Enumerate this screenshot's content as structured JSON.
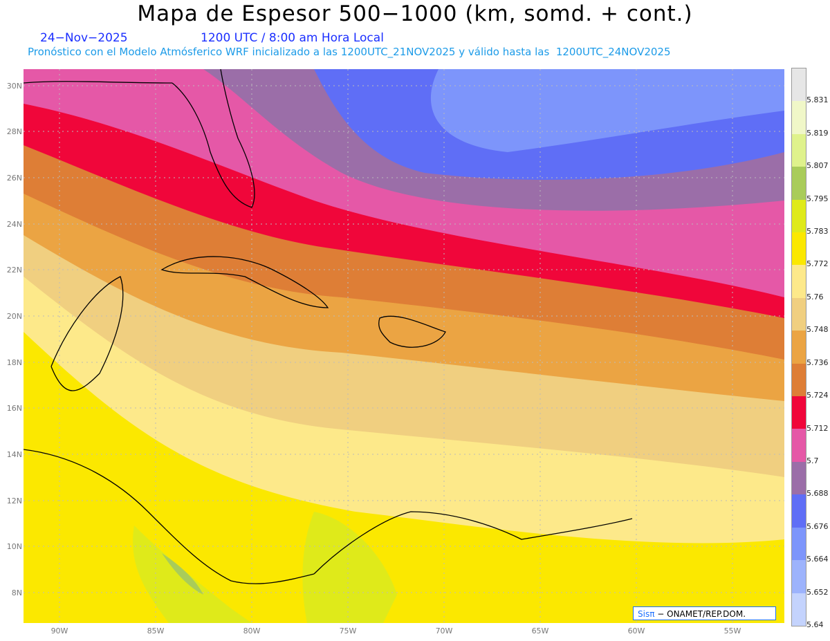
{
  "title": "Mapa de Espesor 500−1000 (km, somd. + cont.)",
  "date": "24−Nov−2025",
  "time": "1200 UTC / 8:00 am Hora Local",
  "forecast": "Pronóstico con el Modelo Atmósferico WRF inicializado a las 1200UTC_21NOV2025 y válido hasta las  1200UTC_24NOV2025",
  "lat_labels": [
    "30N",
    "28N",
    "26N",
    "24N",
    "22N",
    "20N",
    "18N",
    "16N",
    "14N",
    "12N",
    "10N",
    "8N"
  ],
  "lon_labels": [
    "90W",
    "85W",
    "80W",
    "75W",
    "70W",
    "65W",
    "60W",
    "55W"
  ],
  "colorbar": {
    "labels": [
      "5.831",
      "5.819",
      "5.807",
      "5.795",
      "5.783",
      "5.772",
      "5.76",
      "5.748",
      "5.736",
      "5.724",
      "5.712",
      "5.7",
      "5.688",
      "5.676",
      "5.664",
      "5.652",
      "5.64"
    ],
    "colors": [
      "#e6e6e6",
      "#f0f7c8",
      "#dff28c",
      "#a9cc5a",
      "#dfea1a",
      "#fbe800",
      "#fde98a",
      "#f0cf80",
      "#eba443",
      "#de7e36",
      "#f0063a",
      "#e558a7",
      "#9b6ea8",
      "#5f6ef6",
      "#7d95fb",
      "#9db3fc",
      "#c4d3fd"
    ]
  },
  "credit_brand": "Sisπ",
  "credit_text": "− ONAMET/REP.DOM."
}
